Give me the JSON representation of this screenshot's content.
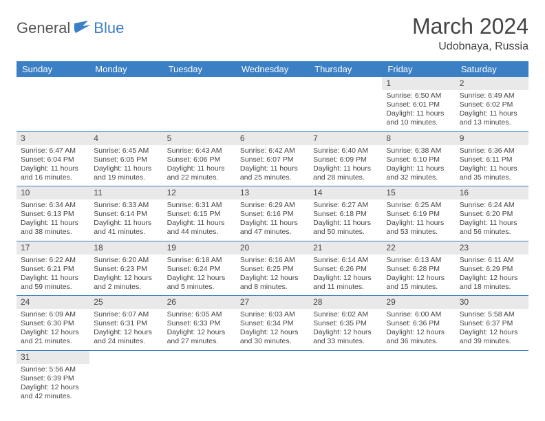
{
  "logo": {
    "general": "General",
    "blue": "Blue"
  },
  "title": "March 2024",
  "location": "Udobnaya, Russia",
  "colors": {
    "header_bg": "#3b7fc4",
    "header_text": "#ffffff",
    "daynum_bg": "#e9e9e9",
    "border": "#3b7fc4",
    "text": "#444444",
    "background": "#ffffff"
  },
  "weekdays": [
    "Sunday",
    "Monday",
    "Tuesday",
    "Wednesday",
    "Thursday",
    "Friday",
    "Saturday"
  ],
  "weeks": [
    [
      null,
      null,
      null,
      null,
      null,
      {
        "n": "1",
        "sr": "6:50 AM",
        "ss": "6:01 PM",
        "dl": "11 hours and 10 minutes."
      },
      {
        "n": "2",
        "sr": "6:49 AM",
        "ss": "6:02 PM",
        "dl": "11 hours and 13 minutes."
      }
    ],
    [
      {
        "n": "3",
        "sr": "6:47 AM",
        "ss": "6:04 PM",
        "dl": "11 hours and 16 minutes."
      },
      {
        "n": "4",
        "sr": "6:45 AM",
        "ss": "6:05 PM",
        "dl": "11 hours and 19 minutes."
      },
      {
        "n": "5",
        "sr": "6:43 AM",
        "ss": "6:06 PM",
        "dl": "11 hours and 22 minutes."
      },
      {
        "n": "6",
        "sr": "6:42 AM",
        "ss": "6:07 PM",
        "dl": "11 hours and 25 minutes."
      },
      {
        "n": "7",
        "sr": "6:40 AM",
        "ss": "6:09 PM",
        "dl": "11 hours and 28 minutes."
      },
      {
        "n": "8",
        "sr": "6:38 AM",
        "ss": "6:10 PM",
        "dl": "11 hours and 32 minutes."
      },
      {
        "n": "9",
        "sr": "6:36 AM",
        "ss": "6:11 PM",
        "dl": "11 hours and 35 minutes."
      }
    ],
    [
      {
        "n": "10",
        "sr": "6:34 AM",
        "ss": "6:13 PM",
        "dl": "11 hours and 38 minutes."
      },
      {
        "n": "11",
        "sr": "6:33 AM",
        "ss": "6:14 PM",
        "dl": "11 hours and 41 minutes."
      },
      {
        "n": "12",
        "sr": "6:31 AM",
        "ss": "6:15 PM",
        "dl": "11 hours and 44 minutes."
      },
      {
        "n": "13",
        "sr": "6:29 AM",
        "ss": "6:16 PM",
        "dl": "11 hours and 47 minutes."
      },
      {
        "n": "14",
        "sr": "6:27 AM",
        "ss": "6:18 PM",
        "dl": "11 hours and 50 minutes."
      },
      {
        "n": "15",
        "sr": "6:25 AM",
        "ss": "6:19 PM",
        "dl": "11 hours and 53 minutes."
      },
      {
        "n": "16",
        "sr": "6:24 AM",
        "ss": "6:20 PM",
        "dl": "11 hours and 56 minutes."
      }
    ],
    [
      {
        "n": "17",
        "sr": "6:22 AM",
        "ss": "6:21 PM",
        "dl": "11 hours and 59 minutes."
      },
      {
        "n": "18",
        "sr": "6:20 AM",
        "ss": "6:23 PM",
        "dl": "12 hours and 2 minutes."
      },
      {
        "n": "19",
        "sr": "6:18 AM",
        "ss": "6:24 PM",
        "dl": "12 hours and 5 minutes."
      },
      {
        "n": "20",
        "sr": "6:16 AM",
        "ss": "6:25 PM",
        "dl": "12 hours and 8 minutes."
      },
      {
        "n": "21",
        "sr": "6:14 AM",
        "ss": "6:26 PM",
        "dl": "12 hours and 11 minutes."
      },
      {
        "n": "22",
        "sr": "6:13 AM",
        "ss": "6:28 PM",
        "dl": "12 hours and 15 minutes."
      },
      {
        "n": "23",
        "sr": "6:11 AM",
        "ss": "6:29 PM",
        "dl": "12 hours and 18 minutes."
      }
    ],
    [
      {
        "n": "24",
        "sr": "6:09 AM",
        "ss": "6:30 PM",
        "dl": "12 hours and 21 minutes."
      },
      {
        "n": "25",
        "sr": "6:07 AM",
        "ss": "6:31 PM",
        "dl": "12 hours and 24 minutes."
      },
      {
        "n": "26",
        "sr": "6:05 AM",
        "ss": "6:33 PM",
        "dl": "12 hours and 27 minutes."
      },
      {
        "n": "27",
        "sr": "6:03 AM",
        "ss": "6:34 PM",
        "dl": "12 hours and 30 minutes."
      },
      {
        "n": "28",
        "sr": "6:02 AM",
        "ss": "6:35 PM",
        "dl": "12 hours and 33 minutes."
      },
      {
        "n": "29",
        "sr": "6:00 AM",
        "ss": "6:36 PM",
        "dl": "12 hours and 36 minutes."
      },
      {
        "n": "30",
        "sr": "5:58 AM",
        "ss": "6:37 PM",
        "dl": "12 hours and 39 minutes."
      }
    ],
    [
      {
        "n": "31",
        "sr": "5:56 AM",
        "ss": "6:39 PM",
        "dl": "12 hours and 42 minutes."
      },
      null,
      null,
      null,
      null,
      null,
      null
    ]
  ],
  "labels": {
    "sunrise": "Sunrise:",
    "sunset": "Sunset:",
    "daylight": "Daylight:"
  }
}
